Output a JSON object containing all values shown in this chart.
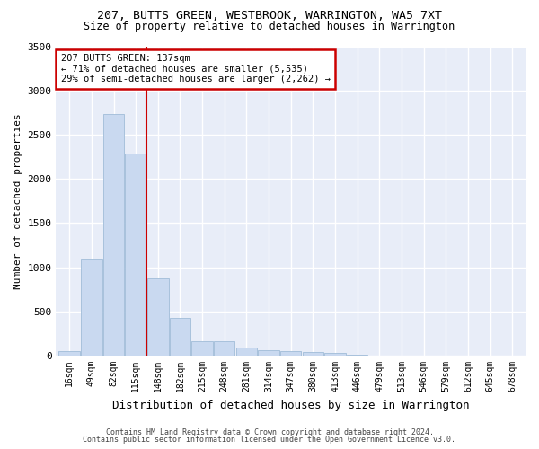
{
  "title_line1": "207, BUTTS GREEN, WESTBROOK, WARRINGTON, WA5 7XT",
  "title_line2": "Size of property relative to detached houses in Warrington",
  "xlabel": "Distribution of detached houses by size in Warrington",
  "ylabel": "Number of detached properties",
  "categories": [
    "16sqm",
    "49sqm",
    "82sqm",
    "115sqm",
    "148sqm",
    "182sqm",
    "215sqm",
    "248sqm",
    "281sqm",
    "314sqm",
    "347sqm",
    "380sqm",
    "413sqm",
    "446sqm",
    "479sqm",
    "513sqm",
    "546sqm",
    "579sqm",
    "612sqm",
    "645sqm",
    "678sqm"
  ],
  "values": [
    50,
    1100,
    2730,
    2290,
    870,
    430,
    165,
    165,
    90,
    65,
    55,
    40,
    30,
    10,
    5,
    5,
    0,
    0,
    0,
    0,
    0
  ],
  "bar_color": "#c9d9f0",
  "bar_edge_color": "#a0bcd8",
  "red_line_x": 3.5,
  "annotation_line1": "207 BUTTS GREEN: 137sqm",
  "annotation_line2": "← 71% of detached houses are smaller (5,535)",
  "annotation_line3": "29% of semi-detached houses are larger (2,262) →",
  "annotation_box_color": "#ffffff",
  "annotation_box_edge_color": "#cc0000",
  "ylim": [
    0,
    3500
  ],
  "yticks": [
    0,
    500,
    1000,
    1500,
    2000,
    2500,
    3000,
    3500
  ],
  "plot_bg_color": "#e8edf8",
  "fig_bg_color": "#ffffff",
  "grid_color": "#ffffff",
  "footer_line1": "Contains HM Land Registry data © Crown copyright and database right 2024.",
  "footer_line2": "Contains public sector information licensed under the Open Government Licence v3.0."
}
